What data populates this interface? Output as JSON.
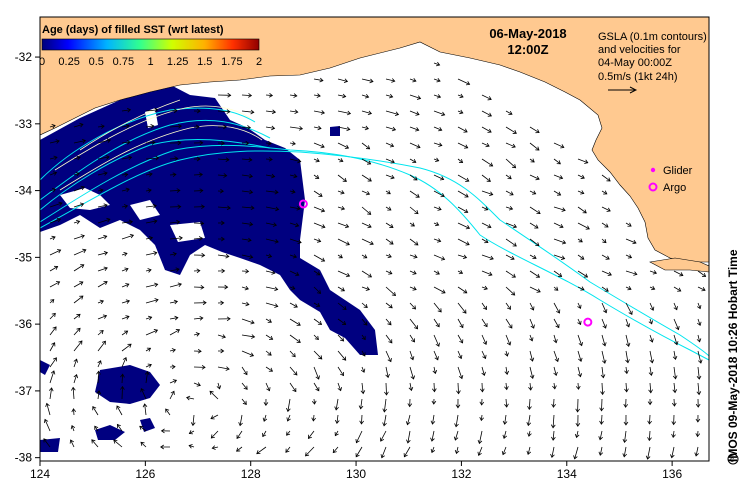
{
  "title": {
    "date": "06-May-2018",
    "time": "12:00Z"
  },
  "colorbar": {
    "title": "Age (days) of filled SST (wrt latest)",
    "ticks": [
      "0",
      "0.25",
      "0.5",
      "0.75",
      "1",
      "1.25",
      "1.5",
      "1.75",
      "2"
    ],
    "range": [
      0,
      2
    ],
    "palette": [
      "#000080",
      "#0000d0",
      "#0060ff",
      "#00c0ff",
      "#40ff80",
      "#c0ff00",
      "#ffc000",
      "#ff6000",
      "#d00000"
    ]
  },
  "gsla_note": {
    "line1": "GSLA (0.1m contours)",
    "line2": "and velocities for",
    "line3": "04-May 00:00Z",
    "line4": "0.5m/s (1kt 24h)"
  },
  "legend": {
    "glider_label": "Glider",
    "argo_label": "Argo",
    "glider_color": "#ff00ff",
    "argo_color": "#ff00ff"
  },
  "credit": "IMOS 09-May-2018 10:26 Hobart Time",
  "axes": {
    "x_ticks": [
      "124",
      "126",
      "128",
      "130",
      "132",
      "134",
      "136"
    ],
    "y_ticks": [
      "-32",
      "-33",
      "-34",
      "-35",
      "-36",
      "-37",
      "-38"
    ],
    "lon_range": [
      124,
      136.7
    ],
    "lat_range": [
      -38.05,
      -31.4
    ]
  },
  "colors": {
    "land": "#ffc990",
    "stale_sst": "#000080",
    "contour": "#00e5ee",
    "arrow": "#000000"
  },
  "markers": {
    "argo": [
      {
        "lon": 129.0,
        "lat": -34.2
      },
      {
        "lon": 134.4,
        "lat": -35.97
      }
    ]
  }
}
